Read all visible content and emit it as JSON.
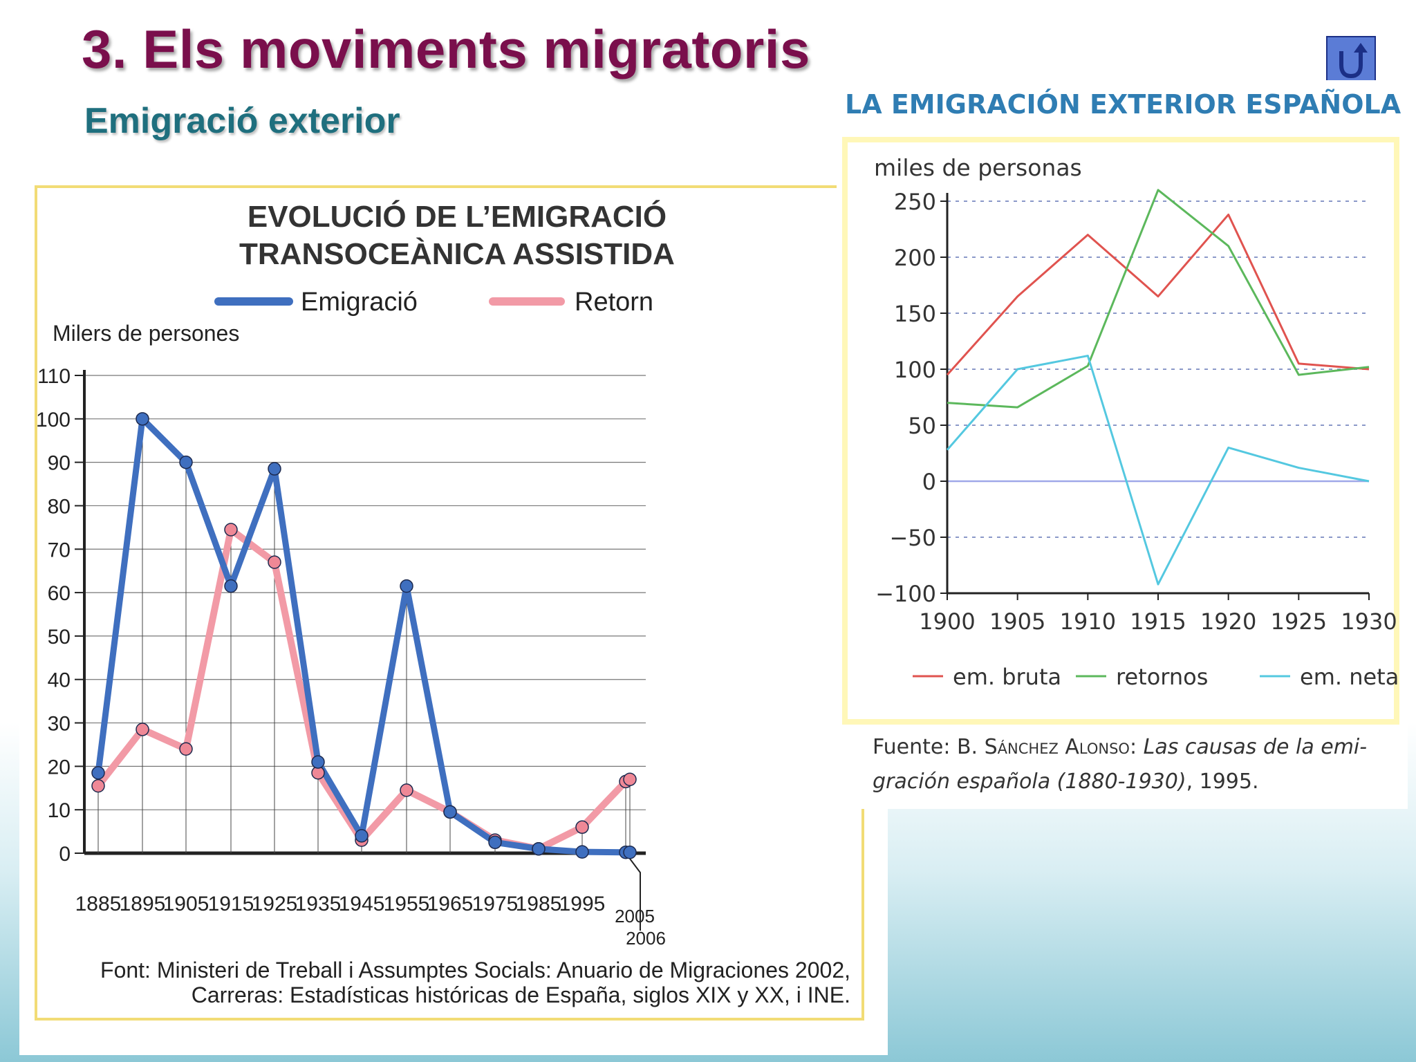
{
  "slide": {
    "title": "3. Els moviments migratoris",
    "subtitle": "Emigració exterior",
    "back_icon": "return-arrow-icon"
  },
  "chart_data": [
    {
      "type": "line",
      "title": "EVOLUCIÓ DE L’EMIGRACIÓ",
      "subtitle": "TRANSOCEÀNICA ASSISTIDA",
      "ylabel": "Milers de persones",
      "xlabel": "",
      "ylim": [
        0,
        110
      ],
      "yticks": [
        "0",
        "10",
        "20",
        "30",
        "40",
        "50",
        "60",
        "70",
        "80",
        "90",
        "100",
        "110"
      ],
      "categories": [
        "1885",
        "1895",
        "1905",
        "1915",
        "1925",
        "1935",
        "1945",
        "1955",
        "1965",
        "1975",
        "1985",
        "1995",
        "2005",
        "2006"
      ],
      "series": [
        {
          "name": "Emigració",
          "color": "#3f6fbf",
          "values": [
            18.5,
            100,
            90,
            61.5,
            88.5,
            21,
            4,
            61.5,
            9.5,
            2.5,
            1,
            0.3,
            0.2,
            0.2
          ]
        },
        {
          "name": "Retorn",
          "color": "#f29aa6",
          "values": [
            15.5,
            28.5,
            24,
            74.5,
            67,
            18.5,
            3,
            14.5,
            9.5,
            3,
            1,
            6,
            16.5,
            17
          ]
        }
      ],
      "grid": true,
      "legend_position": "top",
      "source_line1": "Font: Ministeri de Treball i Assumptes Socials: Anuario de Migraciones 2002,",
      "source_line2": "Carreras: Estadísticas históricas de España, siglos XIX y XX, i INE."
    },
    {
      "type": "line",
      "title": "LA EMIGRACIÓN EXTERIOR ESPAÑOLA",
      "ylabel": "miles de personas",
      "xlabel": "",
      "ylim": [
        -100,
        250
      ],
      "yticks": [
        "−100",
        "−50",
        "0",
        "50",
        "100",
        "150",
        "200",
        "250"
      ],
      "categories": [
        "1900",
        "1905",
        "1910",
        "1915",
        "1920",
        "1925",
        "1930"
      ],
      "series": [
        {
          "name": "em. bruta",
          "color": "#e0534f",
          "values": [
            95,
            165,
            220,
            165,
            238,
            105,
            100
          ]
        },
        {
          "name": "retornos",
          "color": "#5cb85c",
          "values": [
            70,
            66,
            103,
            260,
            210,
            95,
            102
          ]
        },
        {
          "name": "em. neta",
          "color": "#54c8e0",
          "values": [
            28,
            100,
            112,
            -92,
            30,
            12,
            0
          ]
        }
      ],
      "grid": true,
      "legend_position": "bottom",
      "source_prefix": "Fuente: B. ",
      "source_author": "Sánchez Alonso",
      "source_colon": ": ",
      "source_italic1": "Las causas de la emi-",
      "source_italic2": "gración española (1880-1930)",
      "source_tail": ", 1995."
    }
  ]
}
